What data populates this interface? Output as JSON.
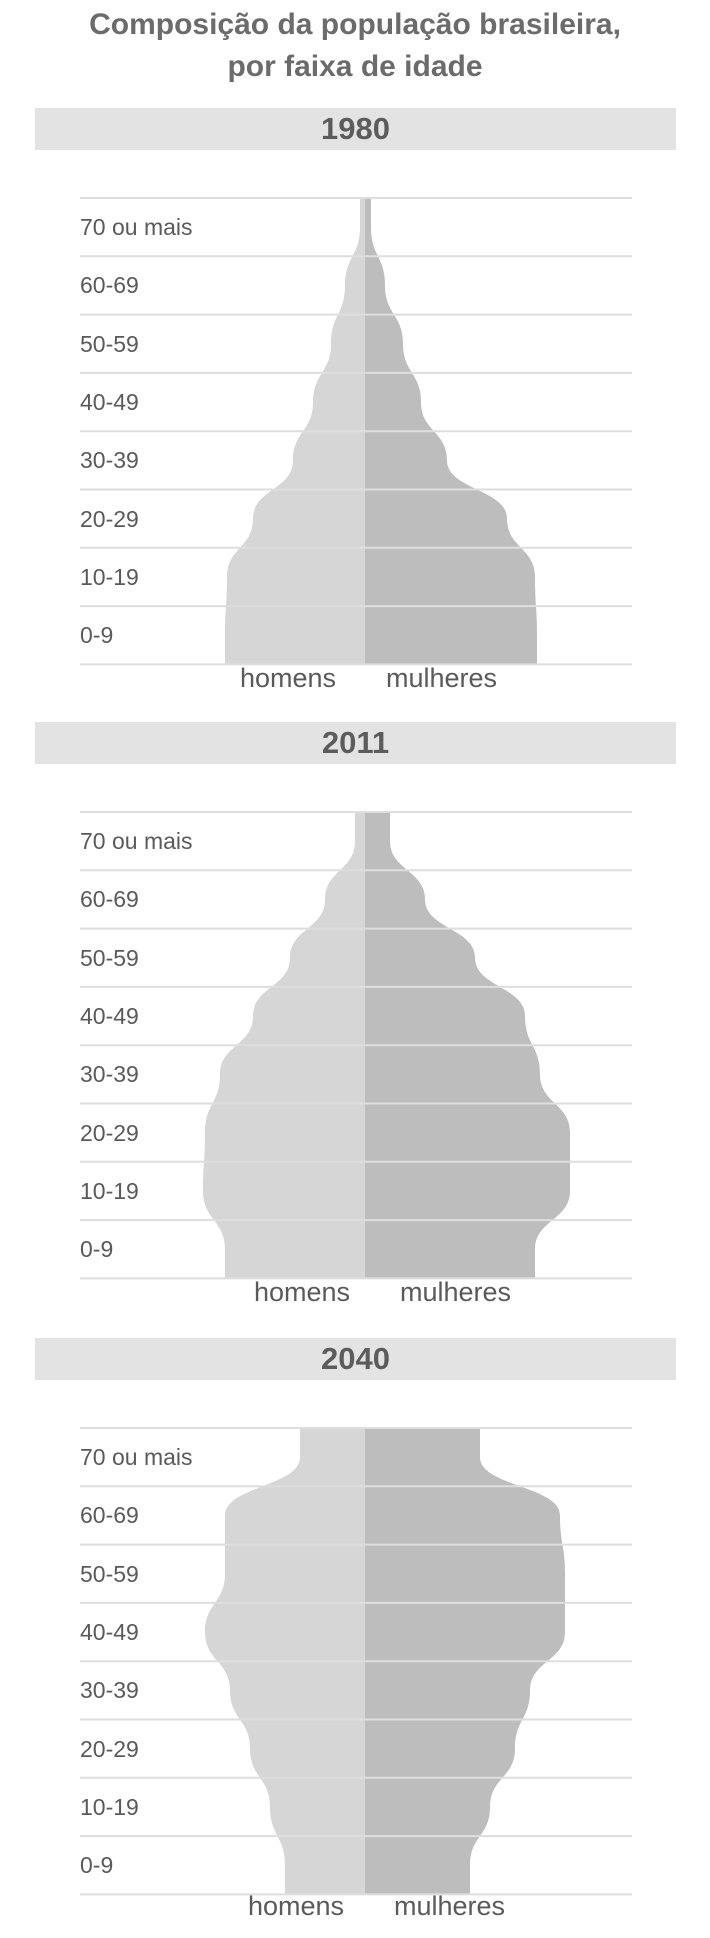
{
  "title_line1": "Composição da população brasileira,",
  "title_line2": "por faixa de idade",
  "colors": {
    "men": "#d6d6d6",
    "women": "#bdbdbd",
    "band": "#e3e3e3",
    "gridline": "#dedede"
  },
  "chart_data": [
    {
      "type": "area",
      "year": "1980",
      "categories": [
        "0-9",
        "10-19",
        "20-29",
        "30-39",
        "40-49",
        "50-59",
        "60-69",
        "70 ou mais"
      ],
      "left_label": "homens",
      "right_label": "mulheres",
      "series": [
        {
          "name": "homens",
          "values": [
            140,
            138,
            112,
            72,
            52,
            34,
            20,
            5
          ]
        },
        {
          "name": "mulheres",
          "values": [
            172,
            170,
            142,
            82,
            56,
            38,
            20,
            6
          ]
        }
      ]
    },
    {
      "type": "area",
      "year": "2011",
      "categories": [
        "0-9",
        "10-19",
        "20-29",
        "30-39",
        "40-49",
        "50-59",
        "60-69",
        "70 ou mais"
      ],
      "left_label": "homens",
      "right_label": "mulheres",
      "series": [
        {
          "name": "homens",
          "values": [
            140,
            162,
            160,
            145,
            112,
            75,
            40,
            10
          ]
        },
        {
          "name": "mulheres",
          "values": [
            170,
            205,
            205,
            175,
            160,
            110,
            60,
            25
          ]
        }
      ]
    },
    {
      "type": "area",
      "year": "2040",
      "categories": [
        "0-9",
        "10-19",
        "20-29",
        "30-39",
        "40-49",
        "50-59",
        "60-69",
        "70 ou mais"
      ],
      "left_label": "homens",
      "right_label": "mulheres",
      "series": [
        {
          "name": "homens",
          "values": [
            80,
            95,
            115,
            135,
            160,
            140,
            140,
            65
          ]
        },
        {
          "name": "mulheres",
          "values": [
            105,
            125,
            150,
            165,
            200,
            200,
            195,
            115
          ]
        }
      ]
    }
  ]
}
